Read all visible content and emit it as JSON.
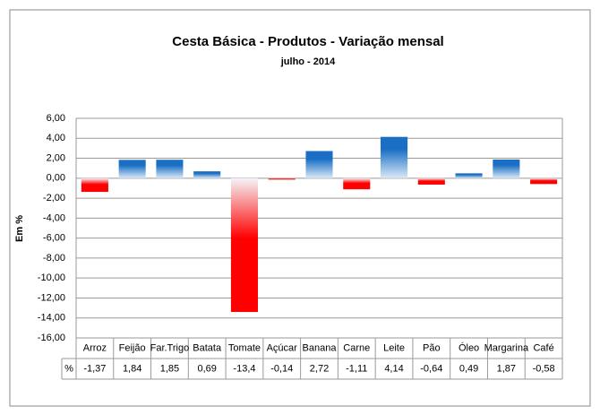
{
  "chart_data": {
    "type": "bar",
    "title": "Cesta Básica - Produtos - Variação mensal",
    "subtitle": "julho - 2014",
    "y_label": "Em %",
    "table_row_label": "%",
    "categories": [
      "Arroz",
      "Feijão",
      "Far.Trigo",
      "Batata",
      "Tomate",
      "Açúcar",
      "Banana",
      "Carne",
      "Leite",
      "Pão",
      "Óleo",
      "Margarina",
      "Café"
    ],
    "values": [
      -1.37,
      1.84,
      1.85,
      0.69,
      -13.4,
      -0.14,
      2.72,
      -1.11,
      4.14,
      -0.64,
      0.49,
      1.87,
      -0.58
    ],
    "value_labels": [
      "-1,37",
      "1,84",
      "1,85",
      "0,69",
      "-13,4",
      "-0,14",
      "2,72",
      "-1,11",
      "4,14",
      "-0,64",
      "0,49",
      "1,87",
      "-0,58"
    ],
    "positive_color": "#1a6fc4",
    "negative_color": "#ff0000",
    "ylim": [
      -16,
      6
    ],
    "yticks": [
      {
        "value": -16,
        "label": "-16,00"
      },
      {
        "value": -14,
        "label": "-14,00"
      },
      {
        "value": -12,
        "label": "-12,00"
      },
      {
        "value": -10,
        "label": "-10,00"
      },
      {
        "value": -8,
        "label": "-8,00"
      },
      {
        "value": -6,
        "label": "-6,00"
      },
      {
        "value": -4,
        "label": "-4,00"
      },
      {
        "value": -2,
        "label": "-2,00"
      },
      {
        "value": 0,
        "label": "0,00"
      },
      {
        "value": 2,
        "label": "2,00"
      },
      {
        "value": 4,
        "label": "4,00"
      },
      {
        "value": 6,
        "label": "6,00"
      }
    ],
    "grid": true
  }
}
